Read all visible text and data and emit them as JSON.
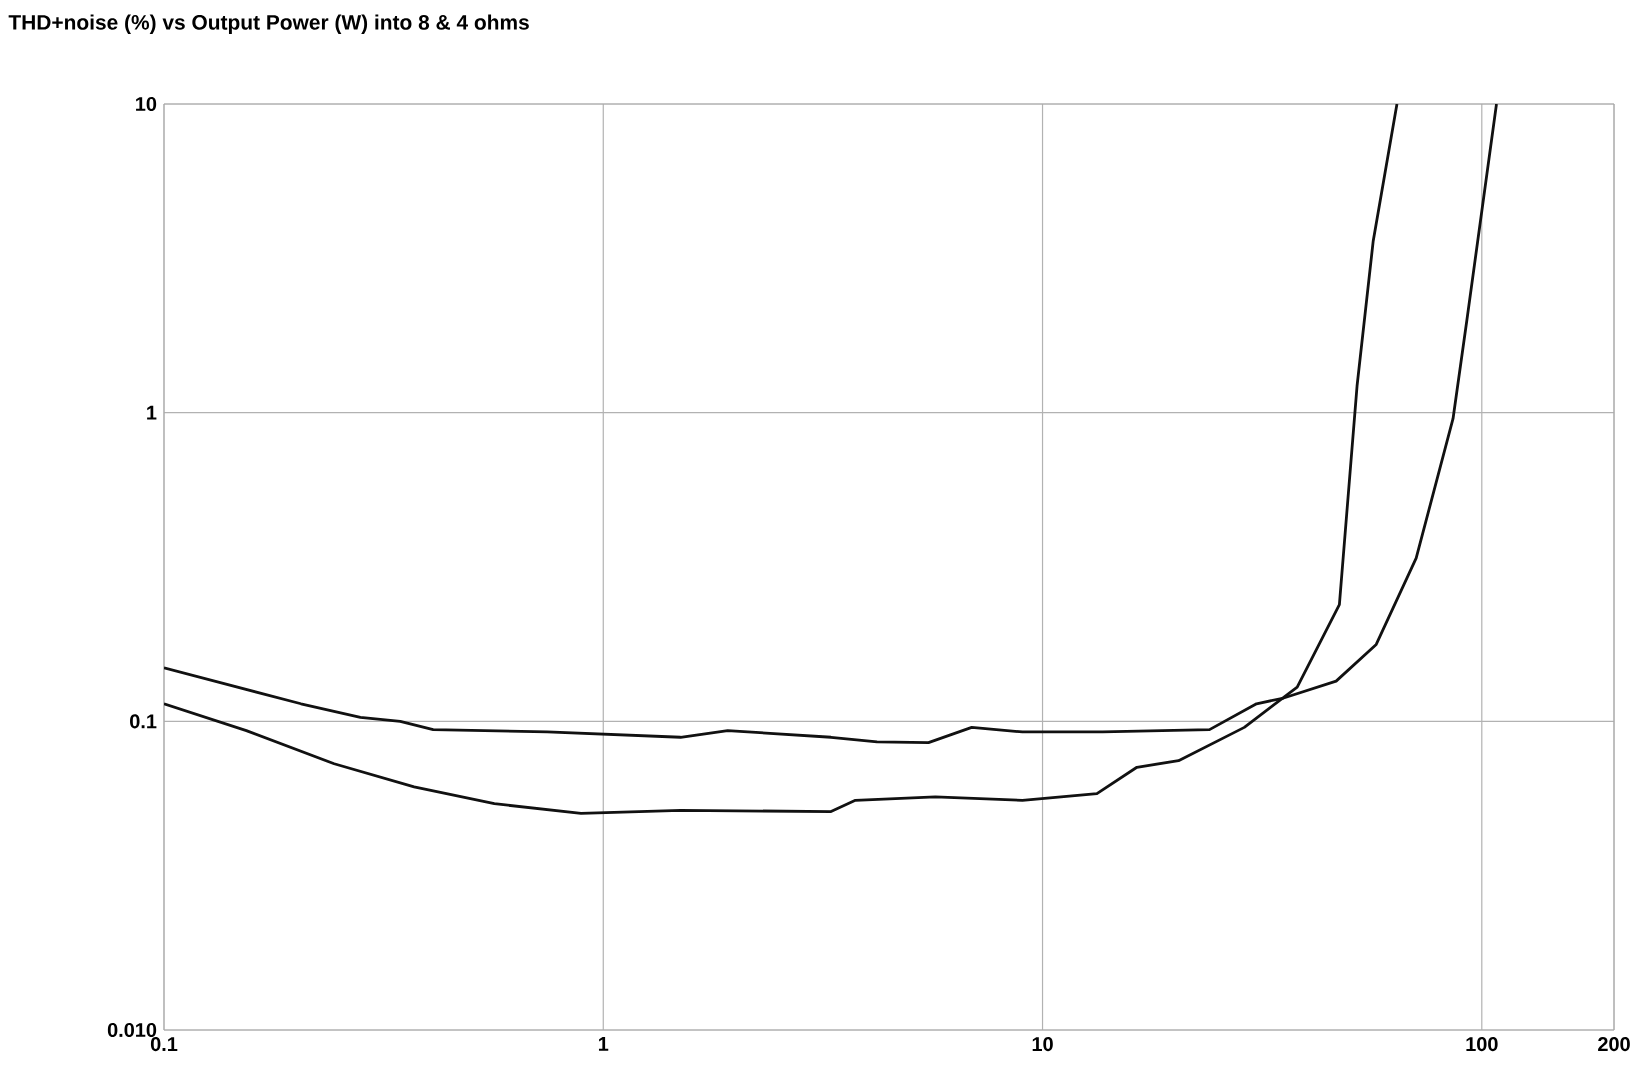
{
  "chart_data": {
    "type": "line",
    "title": "THD+noise (%) vs Output Power (W) into 8 & 4 ohms",
    "log": "xy",
    "grid": true,
    "xlim": [
      0.1,
      200
    ],
    "ylim": [
      0.01,
      10
    ],
    "xticks": [
      0.1,
      1,
      10,
      100,
      200
    ],
    "yticks": [
      {
        "value": 0.01,
        "label": "0.010"
      },
      0.1,
      1,
      10
    ],
    "series": [
      {
        "color": "#111111",
        "x": [
          0.1,
          0.205,
          0.28,
          0.345,
          0.41,
          0.745,
          1.5,
          1.92,
          3.3,
          4.2,
          5.5,
          6.9,
          9,
          13.7,
          24,
          30.7,
          35.4,
          46.6,
          57.5,
          70.9,
          86,
          92.5,
          108
        ],
        "values": [
          0.149,
          0.114,
          0.103,
          0.1,
          0.094,
          0.0924,
          0.0888,
          0.0933,
          0.0888,
          0.0858,
          0.0853,
          0.0956,
          0.0924,
          0.0924,
          0.094,
          0.114,
          0.119,
          0.135,
          0.1775,
          0.338,
          0.956,
          2.0,
          10
        ]
      },
      {
        "color": "#111111",
        "x": [
          0.1,
          0.154,
          0.244,
          0.371,
          0.565,
          0.89,
          1.5,
          3.3,
          3.75,
          5.7,
          9,
          13.3,
          16.4,
          20.4,
          28.8,
          38,
          47.4,
          52,
          56.6,
          64.1
        ],
        "values": [
          0.114,
          0.0933,
          0.0729,
          0.0613,
          0.0541,
          0.0503,
          0.0515,
          0.051,
          0.0555,
          0.0569,
          0.0555,
          0.0583,
          0.071,
          0.0746,
          0.0956,
          0.129,
          0.239,
          1.22,
          3.6,
          10
        ]
      }
    ]
  }
}
